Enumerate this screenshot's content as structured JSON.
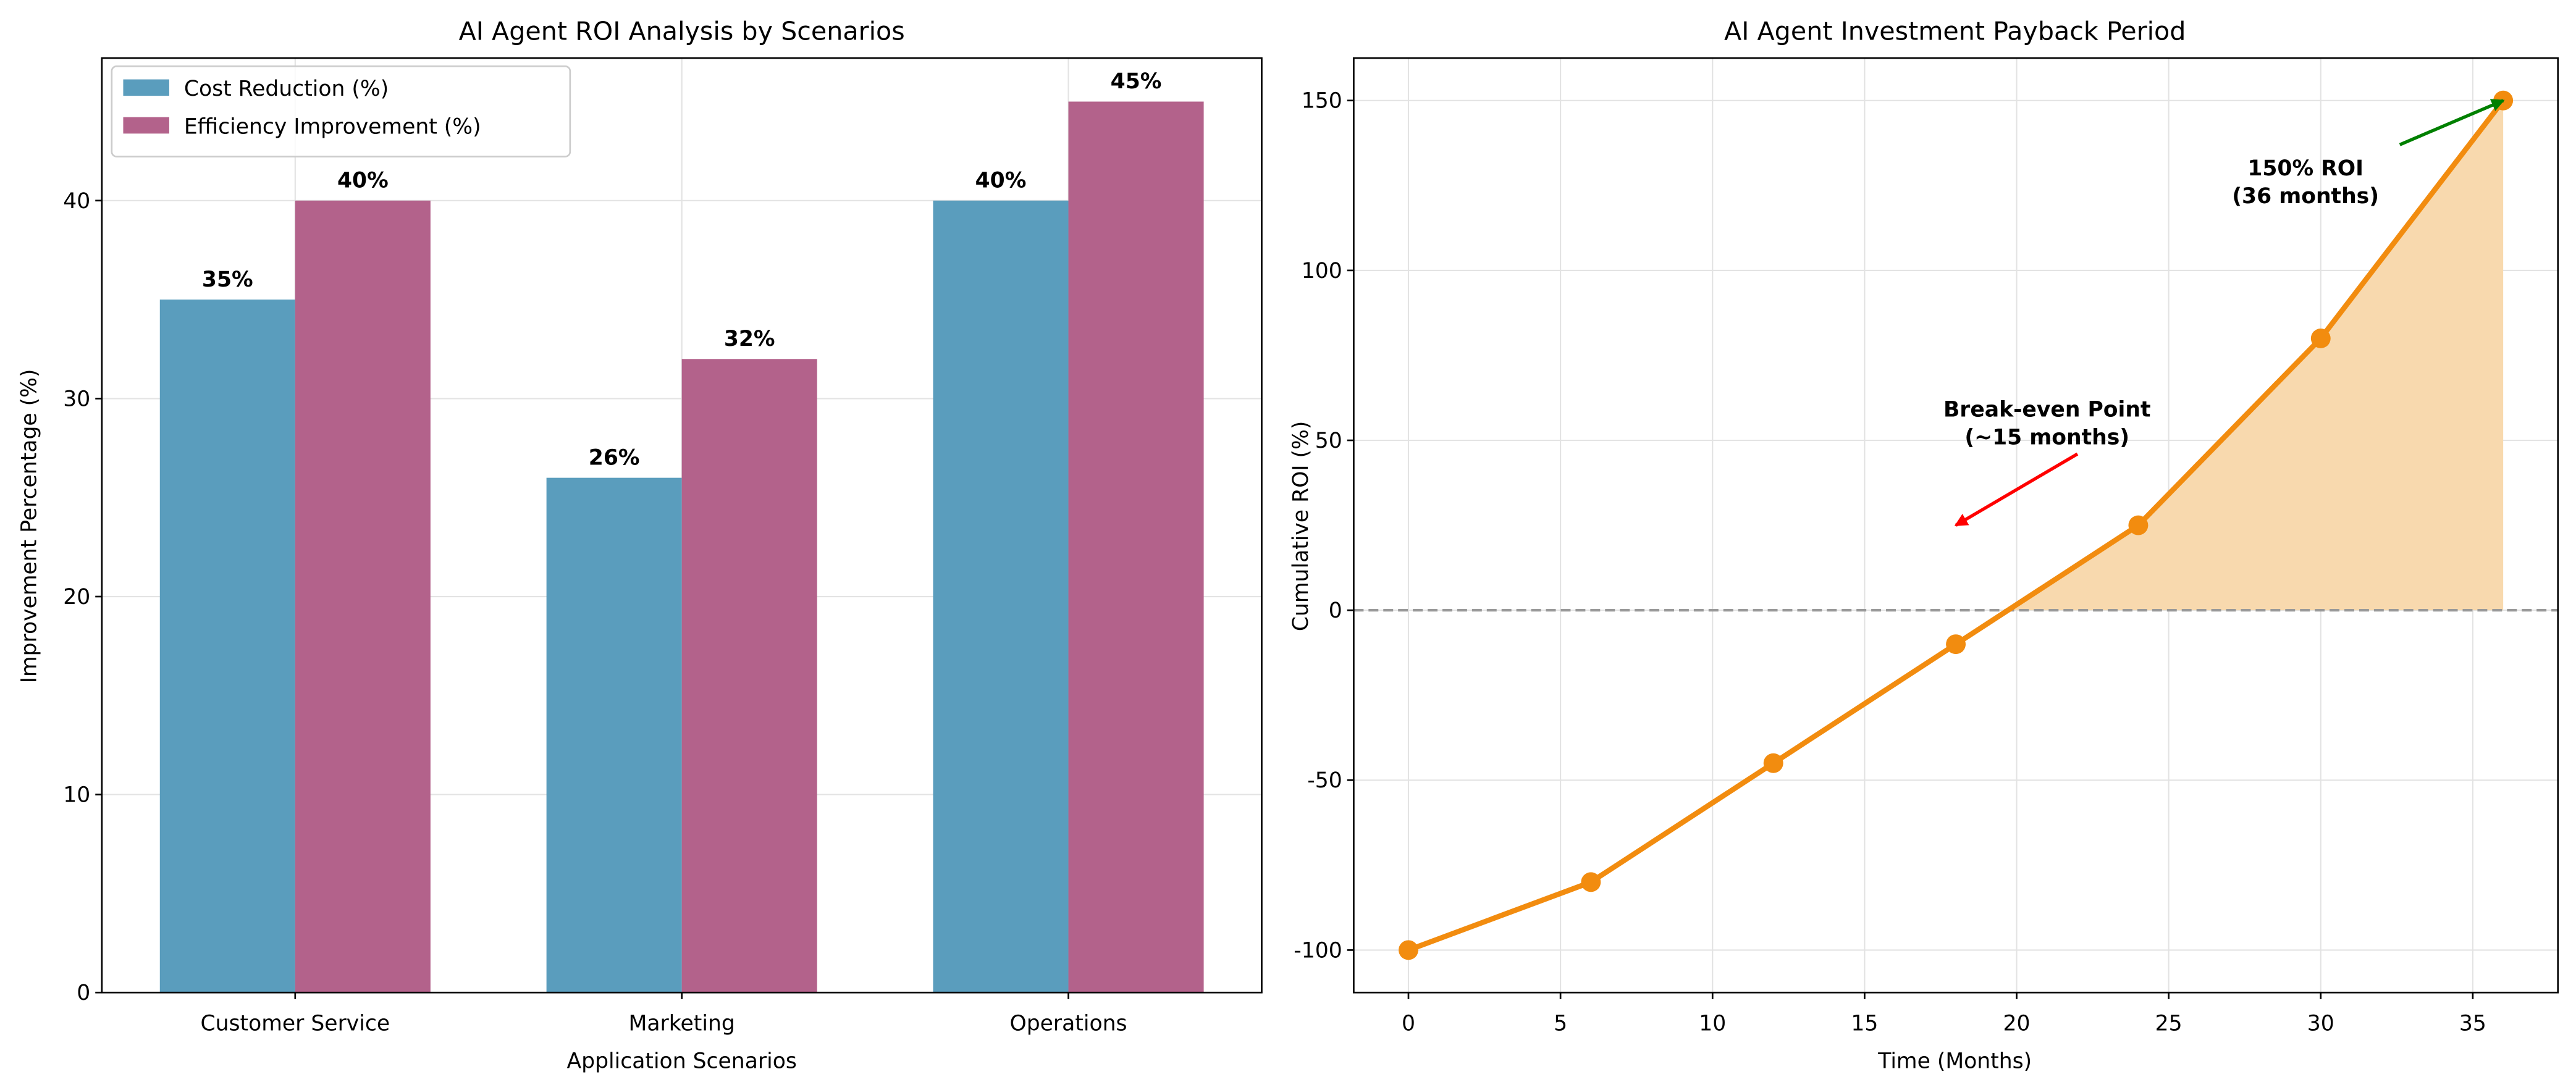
{
  "chart_data": [
    {
      "type": "bar",
      "title": "AI Agent ROI Analysis by Scenarios",
      "xlabel": "Application Scenarios",
      "ylabel": "Improvement Percentage (%)",
      "categories": [
        "Customer Service",
        "Marketing",
        "Operations"
      ],
      "series": [
        {
          "name": "Cost Reduction (%)",
          "values": [
            35,
            26,
            40
          ],
          "labels": [
            "35%",
            "26%",
            "40%"
          ],
          "color": "#5a9dbd"
        },
        {
          "name": "Efficiency Improvement (%)",
          "values": [
            40,
            32,
            45
          ],
          "labels": [
            "40%",
            "32%",
            "45%"
          ],
          "color": "#b3628b"
        }
      ],
      "ylim": [
        0,
        47.2
      ],
      "yticks": [
        0,
        10,
        20,
        30,
        40
      ],
      "grid": true,
      "legend": "top-left"
    },
    {
      "type": "line",
      "title": "AI Agent Investment Payback Period",
      "xlabel": "Time (Months)",
      "ylabel": "Cumulative ROI (%)",
      "x": [
        0,
        6,
        12,
        18,
        24,
        30,
        36
      ],
      "y": [
        -100,
        -80,
        -45,
        -10,
        25,
        80,
        150
      ],
      "color": "#f28c0f",
      "fill_color": "#f8d9ae",
      "xlim": [
        -1.8,
        37.8
      ],
      "ylim": [
        -112.5,
        162.5
      ],
      "xticks": [
        0,
        5,
        10,
        15,
        20,
        25,
        30,
        35
      ],
      "yticks": [
        -100,
        -50,
        0,
        50,
        100,
        150
      ],
      "ytick_labels": [
        "-100",
        "-50",
        "0",
        "50",
        "100",
        "150"
      ],
      "reference_line": {
        "y": 0,
        "color": "#999999",
        "style": "dashed"
      },
      "grid": true,
      "annotations": [
        {
          "text_lines": [
            "Break-even Point",
            "(~15 months)"
          ],
          "text_at": [
            21,
            57
          ],
          "arrow_to": [
            18,
            25
          ],
          "arrow_from": [
            22,
            46
          ],
          "color": "#ff0000"
        },
        {
          "text_lines": [
            "150% ROI",
            "(36 months)"
          ],
          "text_at": [
            29.5,
            128
          ],
          "arrow_to": [
            36,
            150
          ],
          "arrow_from": [
            32.6,
            137
          ],
          "color": "#008000"
        }
      ]
    }
  ]
}
